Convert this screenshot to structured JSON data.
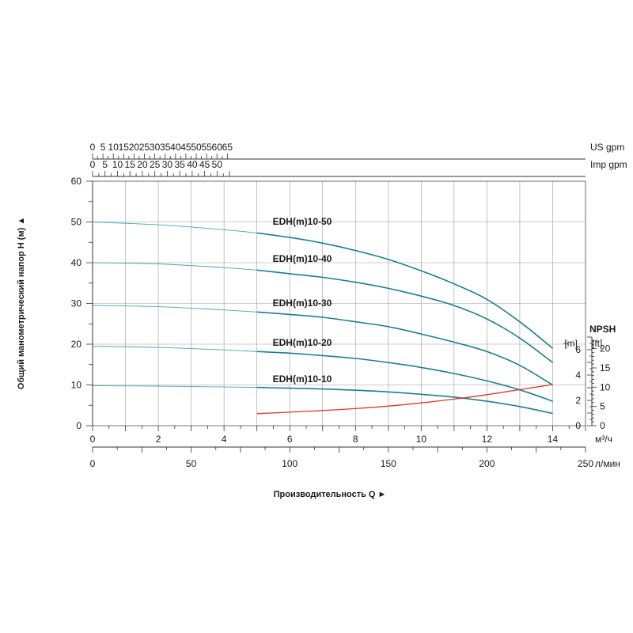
{
  "chart_data": {
    "type": "line",
    "x_axis": {
      "label": "Производительность Q",
      "arrow": "►",
      "unit": "м³/ч",
      "range": [
        0,
        15
      ],
      "ticks": [
        0,
        2,
        4,
        6,
        8,
        10,
        12,
        14
      ]
    },
    "x_axis_lpm": {
      "unit": "л/мин",
      "range": [
        0,
        250
      ],
      "ticks": [
        0,
        50,
        100,
        150,
        200,
        250
      ]
    },
    "x_axis_us_gpm": {
      "unit": "US gpm",
      "range": [
        0,
        65
      ],
      "ticks": [
        0,
        5,
        10,
        15,
        20,
        25,
        30,
        35,
        40,
        45,
        50,
        55,
        60,
        65
      ]
    },
    "x_axis_imp_gpm": {
      "unit": "Imp gpm",
      "range": [
        0,
        55
      ],
      "ticks": [
        0,
        5,
        10,
        15,
        20,
        25,
        30,
        35,
        40,
        45,
        50
      ]
    },
    "y_axis": {
      "label": "Общий манометрический напор H (м)",
      "arrow": "▲",
      "range": [
        0,
        60
      ],
      "ticks": [
        0,
        10,
        20,
        30,
        40,
        50,
        60
      ]
    },
    "npsh_axis": {
      "title": "NPSH",
      "unit_m": "[m]",
      "unit_ft": "[ft]",
      "range_m": [
        0,
        7
      ],
      "ticks_m": [
        0,
        2,
        4,
        6
      ],
      "range_ft": [
        0,
        23
      ],
      "ticks_ft": [
        0,
        5,
        10,
        15,
        20
      ]
    },
    "grid": true,
    "series": [
      {
        "name": "EDH(m)10-50",
        "color": "#1c7f90",
        "x": [
          0,
          2,
          4,
          5,
          6,
          7,
          8,
          9,
          10,
          11,
          12,
          13,
          14
        ],
        "y": [
          50,
          49.3,
          48.1,
          47.3,
          46.2,
          44.8,
          43.0,
          40.8,
          38.0,
          34.8,
          31.0,
          25.5,
          19.0
        ]
      },
      {
        "name": "EDH(m)10-40",
        "color": "#1c7f90",
        "x": [
          0,
          2,
          4,
          5,
          6,
          7,
          8,
          9,
          10,
          11,
          12,
          13,
          14
        ],
        "y": [
          40,
          39.7,
          38.8,
          38.2,
          37.3,
          36.4,
          35.2,
          33.7,
          31.8,
          29.5,
          26.2,
          21.5,
          15.5
        ]
      },
      {
        "name": "EDH(m)10-30",
        "color": "#1c7f90",
        "x": [
          0,
          2,
          4,
          5,
          6,
          7,
          8,
          9,
          10,
          11,
          12,
          13,
          14
        ],
        "y": [
          29.5,
          29.2,
          28.4,
          27.9,
          27.3,
          26.6,
          25.5,
          24.3,
          22.5,
          20.5,
          18.2,
          14.8,
          10.0
        ]
      },
      {
        "name": "EDH(m)10-20",
        "color": "#1c7f90",
        "x": [
          0,
          2,
          4,
          5,
          6,
          7,
          8,
          9,
          10,
          11,
          12,
          13,
          14
        ],
        "y": [
          19.5,
          19.2,
          18.6,
          18.2,
          17.8,
          17.2,
          16.5,
          15.5,
          14.3,
          12.8,
          11.0,
          8.8,
          6.0
        ]
      },
      {
        "name": "EDH(m)10-10",
        "color": "#1c7f90",
        "x": [
          0,
          2,
          4,
          5,
          6,
          7,
          8,
          9,
          10,
          11,
          12,
          13,
          14
        ],
        "y": [
          9.8,
          9.7,
          9.5,
          9.4,
          9.2,
          9.0,
          8.7,
          8.3,
          7.7,
          7.0,
          6.0,
          4.7,
          3.0
        ]
      },
      {
        "name": "NPSH",
        "color": "#d93a2b",
        "axis": "npsh_m",
        "x": [
          5,
          6,
          7,
          8,
          9,
          10,
          11,
          12,
          13,
          14
        ],
        "y": [
          0.95,
          1.07,
          1.2,
          1.35,
          1.55,
          1.8,
          2.1,
          2.45,
          2.85,
          3.25
        ]
      }
    ]
  }
}
